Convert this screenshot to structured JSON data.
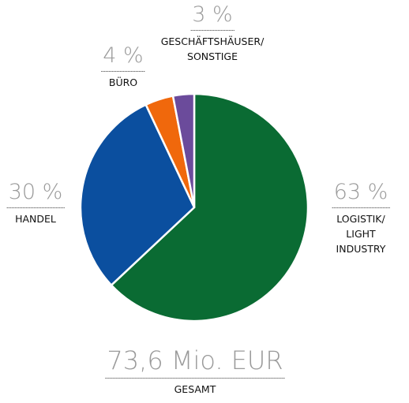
{
  "chart_data": {
    "type": "pie",
    "categories": [
      "LOGISTIK/\nLIGHT INDUSTRY",
      "HANDEL",
      "BÜRO",
      "GESCHÄFTSHÄUSER/\nSONSTIGE"
    ],
    "values": [
      63,
      30,
      4,
      3
    ],
    "value_labels": [
      "63 %",
      "30 %",
      "4 %",
      "3 %"
    ],
    "colors": [
      "#0a6b33",
      "#0b4f9f",
      "#f0680c",
      "#6b4b9b"
    ],
    "total_label": "73,6 Mio. EUR",
    "total_caption": "GESAMT"
  }
}
